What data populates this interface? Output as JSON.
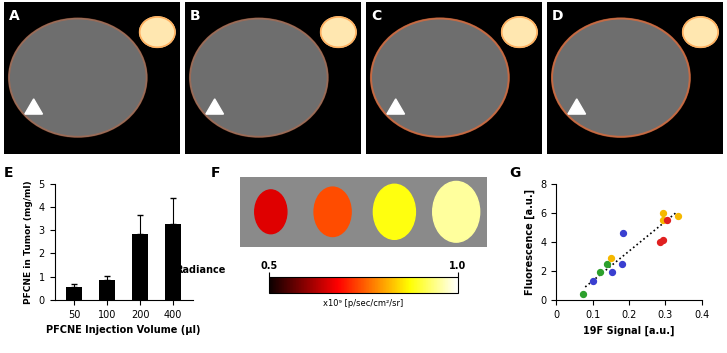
{
  "images": [
    {
      "title": "A"
    },
    {
      "title": "B"
    },
    {
      "title": "C"
    },
    {
      "title": "D"
    }
  ],
  "chart_data": [
    {
      "type": "bar",
      "title": "E",
      "categories": [
        "50",
        "100",
        "200",
        "400"
      ],
      "values": [
        0.55,
        0.85,
        2.85,
        3.25
      ],
      "errors": [
        0.12,
        0.2,
        0.8,
        1.15
      ],
      "color": "#000000",
      "xlabel": "PFCNE Injection Volume (µl)",
      "ylabel": "PFCNE in Tumor (mg/ml)",
      "ylim": [
        0,
        5
      ],
      "yticks": [
        0,
        1,
        2,
        3,
        4,
        5
      ]
    },
    {
      "type": "image",
      "title": "F",
      "values": [
        0.66,
        0.74,
        0.88,
        0.95
      ],
      "colorbar": {
        "label": "Radiance",
        "unit": "x10⁹ [p/sec/cm²/sr]",
        "range": [
          0.5,
          1.0
        ],
        "ticks": [
          0.5,
          {
            "value": 1.0,
            "label": "1.0"
          }
        ]
      }
    },
    {
      "type": "scatter",
      "title": "G",
      "xlabel": "19F Signal [a.u.]",
      "ylabel": "Fluorescence [a.u.]",
      "xlim": [
        0,
        0.4
      ],
      "xticks": [
        0,
        0.1,
        0.2,
        0.3,
        0.4
      ],
      "ylim": [
        0,
        8
      ],
      "yticks": [
        0,
        2,
        4,
        6,
        8
      ],
      "series": [
        {
          "type": "line",
          "color": "#000000",
          "line_style": "dotted",
          "x": [
            0.08,
            0.33
          ],
          "values": [
            0.9,
            6.0
          ]
        },
        {
          "type": "scatter",
          "color": "#2ca02c",
          "marker": "o",
          "x": [
            0.075,
            0.12,
            0.14
          ],
          "values": [
            0.4,
            1.9,
            2.5
          ]
        },
        {
          "type": "scatter",
          "color": "#3a3fd0",
          "marker": "o",
          "x": [
            0.1,
            0.155,
            0.18,
            0.185
          ],
          "values": [
            1.3,
            1.9,
            2.5,
            4.6
          ]
        },
        {
          "type": "scatter",
          "color": "#f5b800",
          "marker": "o",
          "x": [
            0.15,
            0.295,
            0.295,
            0.335
          ],
          "values": [
            2.9,
            6.0,
            5.5,
            5.8
          ]
        },
        {
          "type": "scatter",
          "color": "#e02020",
          "marker": "o",
          "x": [
            0.285,
            0.295,
            0.305
          ],
          "values": [
            4.0,
            4.1,
            5.5
          ]
        }
      ]
    }
  ]
}
